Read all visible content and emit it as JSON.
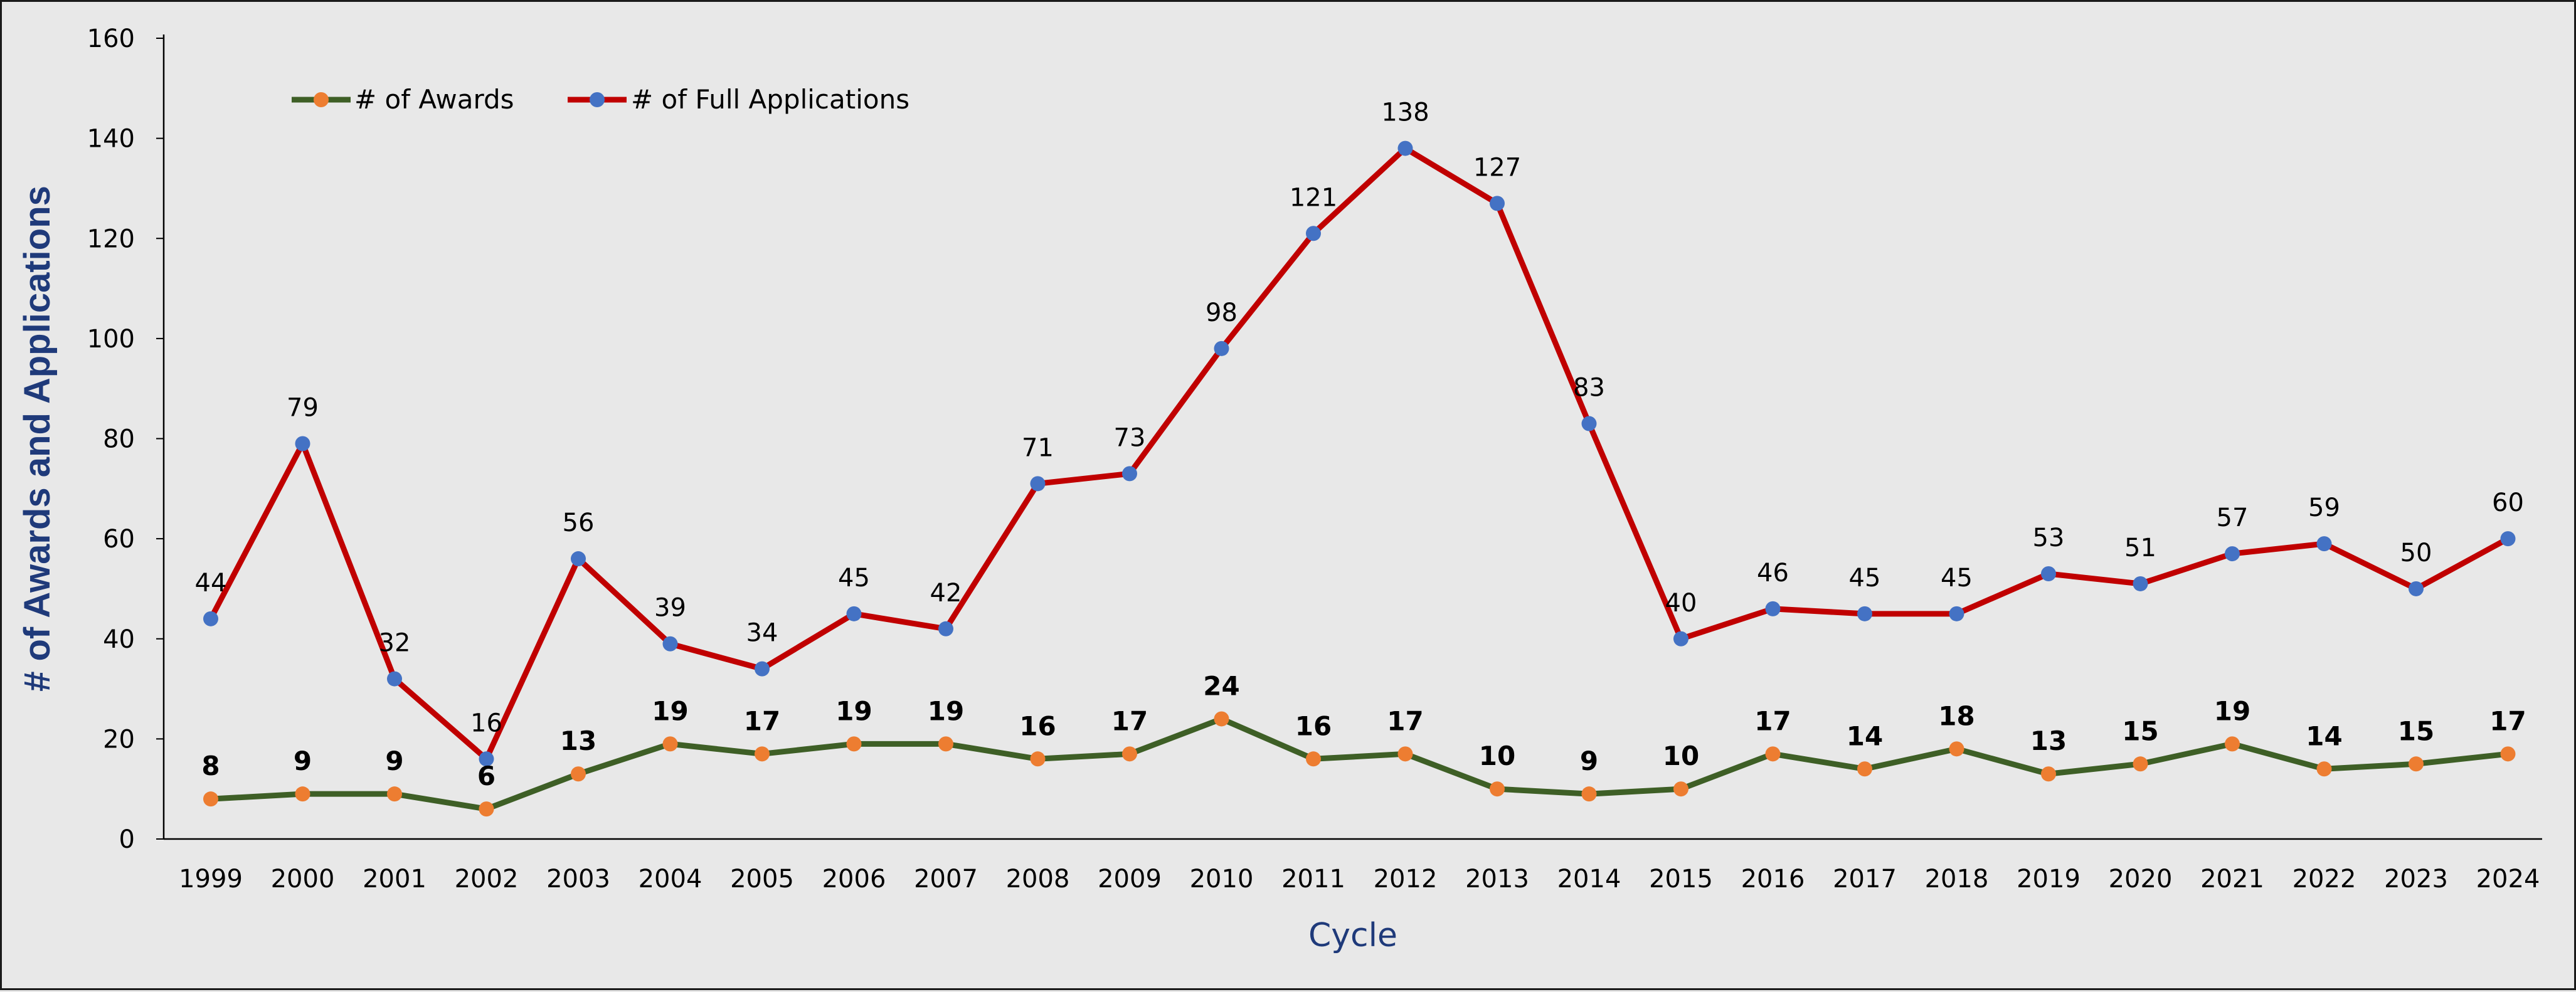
{
  "chart_data": {
    "type": "line",
    "xlabel": "Cycle",
    "ylabel": "# of Awards and Applications",
    "ylim": [
      0,
      160
    ],
    "yticks": [
      0,
      20,
      40,
      60,
      80,
      100,
      120,
      140,
      160
    ],
    "grid": false,
    "legend_position": "top-left",
    "categories": [
      "1999",
      "2000",
      "2001",
      "2002",
      "2003",
      "2004",
      "2005",
      "2006",
      "2007",
      "2008",
      "2009",
      "2010",
      "2011",
      "2012",
      "2013",
      "2014",
      "2015",
      "2016",
      "2017",
      "2018",
      "2019",
      "2020",
      "2021",
      "2022",
      "2023",
      "2024"
    ],
    "series": [
      {
        "name": "# of Awards",
        "line_color": "#3e5f26",
        "marker_color": "#ed7d31",
        "values": [
          8,
          9,
          9,
          6,
          13,
          19,
          17,
          19,
          19,
          16,
          17,
          24,
          16,
          17,
          10,
          9,
          10,
          17,
          14,
          18,
          13,
          15,
          19,
          14,
          15,
          17
        ]
      },
      {
        "name": "# of Full Applications",
        "line_color": "#c00000",
        "marker_color": "#4472c4",
        "values": [
          44,
          79,
          32,
          16,
          56,
          39,
          34,
          45,
          42,
          71,
          73,
          98,
          121,
          138,
          127,
          83,
          40,
          46,
          45,
          45,
          53,
          51,
          57,
          59,
          50,
          60
        ]
      }
    ],
    "colors": {
      "axis": "#000000",
      "axis_title": "#1f3a7a"
    }
  }
}
